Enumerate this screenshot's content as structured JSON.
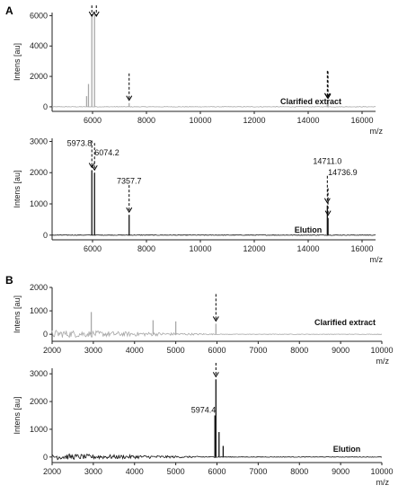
{
  "colors": {
    "gray": "#a8a8a8",
    "black": "#111111",
    "axis": "#222222"
  },
  "chart_data": [
    {
      "type": "line",
      "panel": "A",
      "label": "Clarified extract",
      "ylabel": "Intens [au]",
      "xlabel": "m/z",
      "color": "gray",
      "xlim": [
        4500,
        16500
      ],
      "ylim": [
        -300,
        6200
      ],
      "xticks": [
        6000,
        8000,
        10000,
        12000,
        14000,
        16000
      ],
      "yticks": [
        0,
        2000,
        4000,
        6000
      ],
      "peaks": [
        [
          5973.8,
          6100
        ],
        [
          6074.2,
          6100
        ],
        [
          5850,
          1500
        ],
        [
          5780,
          700
        ],
        [
          7357.7,
          250
        ],
        [
          14711.0,
          420
        ],
        [
          14736.9,
          380
        ]
      ],
      "arrows": [
        5973.8,
        6074.2,
        7357.7,
        14711.0,
        14736.9
      ],
      "peak_labels": []
    },
    {
      "type": "line",
      "panel": "",
      "label": "Elution",
      "ylabel": "Intens [au]",
      "xlabel": "m/z",
      "color": "black",
      "xlim": [
        4500,
        16500
      ],
      "ylim": [
        -150,
        3100
      ],
      "xticks": [
        6000,
        8000,
        10000,
        12000,
        14000,
        16000
      ],
      "yticks": [
        0,
        1000,
        2000,
        3000
      ],
      "peaks": [
        [
          5973.8,
          2080
        ],
        [
          6074.2,
          2000
        ],
        [
          7357.7,
          650
        ],
        [
          14711.0,
          950
        ],
        [
          14736.9,
          550
        ]
      ],
      "arrows": [
        5973.8,
        6074.2,
        7357.7,
        14711.0,
        14736.9
      ],
      "peak_labels": [
        {
          "text": "5973.8",
          "x": 5973.8,
          "y": 2850,
          "anchor": "end"
        },
        {
          "text": "6074.2",
          "x": 6074.2,
          "y": 2550,
          "anchor": "start"
        },
        {
          "text": "7357.7",
          "x": 7357.7,
          "y": 1650,
          "anchor": "middle"
        },
        {
          "text": "14711.0",
          "x": 14711.0,
          "y": 2280,
          "anchor": "middle"
        },
        {
          "text": "14736.9",
          "x": 14736.9,
          "y": 1920,
          "anchor": "start"
        }
      ]
    },
    {
      "type": "line",
      "panel": "B",
      "label": "Clarified extract",
      "ylabel": "Intens [au]",
      "xlabel": "m/z",
      "color": "gray",
      "xlim": [
        2000,
        10000
      ],
      "ylim": [
        -300,
        2000
      ],
      "xticks": [
        2000,
        3000,
        4000,
        5000,
        6000,
        7000,
        8000,
        9000,
        10000
      ],
      "yticks": [
        0,
        1000,
        2000
      ],
      "peaks": [
        [
          2950,
          950
        ],
        [
          4450,
          600
        ],
        [
          5000,
          550
        ],
        [
          5974.4,
          450
        ]
      ],
      "arrows": [
        5974.4
      ],
      "peak_labels": []
    },
    {
      "type": "line",
      "panel": "",
      "label": "Elution",
      "ylabel": "Intens [au]",
      "xlabel": "m/z",
      "color": "black",
      "xlim": [
        2000,
        10000
      ],
      "ylim": [
        -200,
        3200
      ],
      "xticks": [
        2000,
        3000,
        4000,
        5000,
        6000,
        7000,
        8000,
        9000,
        10000
      ],
      "yticks": [
        0,
        1000,
        2000,
        3000
      ],
      "peaks": [
        [
          5974.4,
          2800
        ],
        [
          5950,
          1500
        ],
        [
          6050,
          900
        ],
        [
          6150,
          400
        ]
      ],
      "arrows": [
        5974.4
      ],
      "peak_labels": [
        {
          "text": "5974.4",
          "x": 5974.4,
          "y": 1600,
          "anchor": "end"
        }
      ]
    }
  ]
}
